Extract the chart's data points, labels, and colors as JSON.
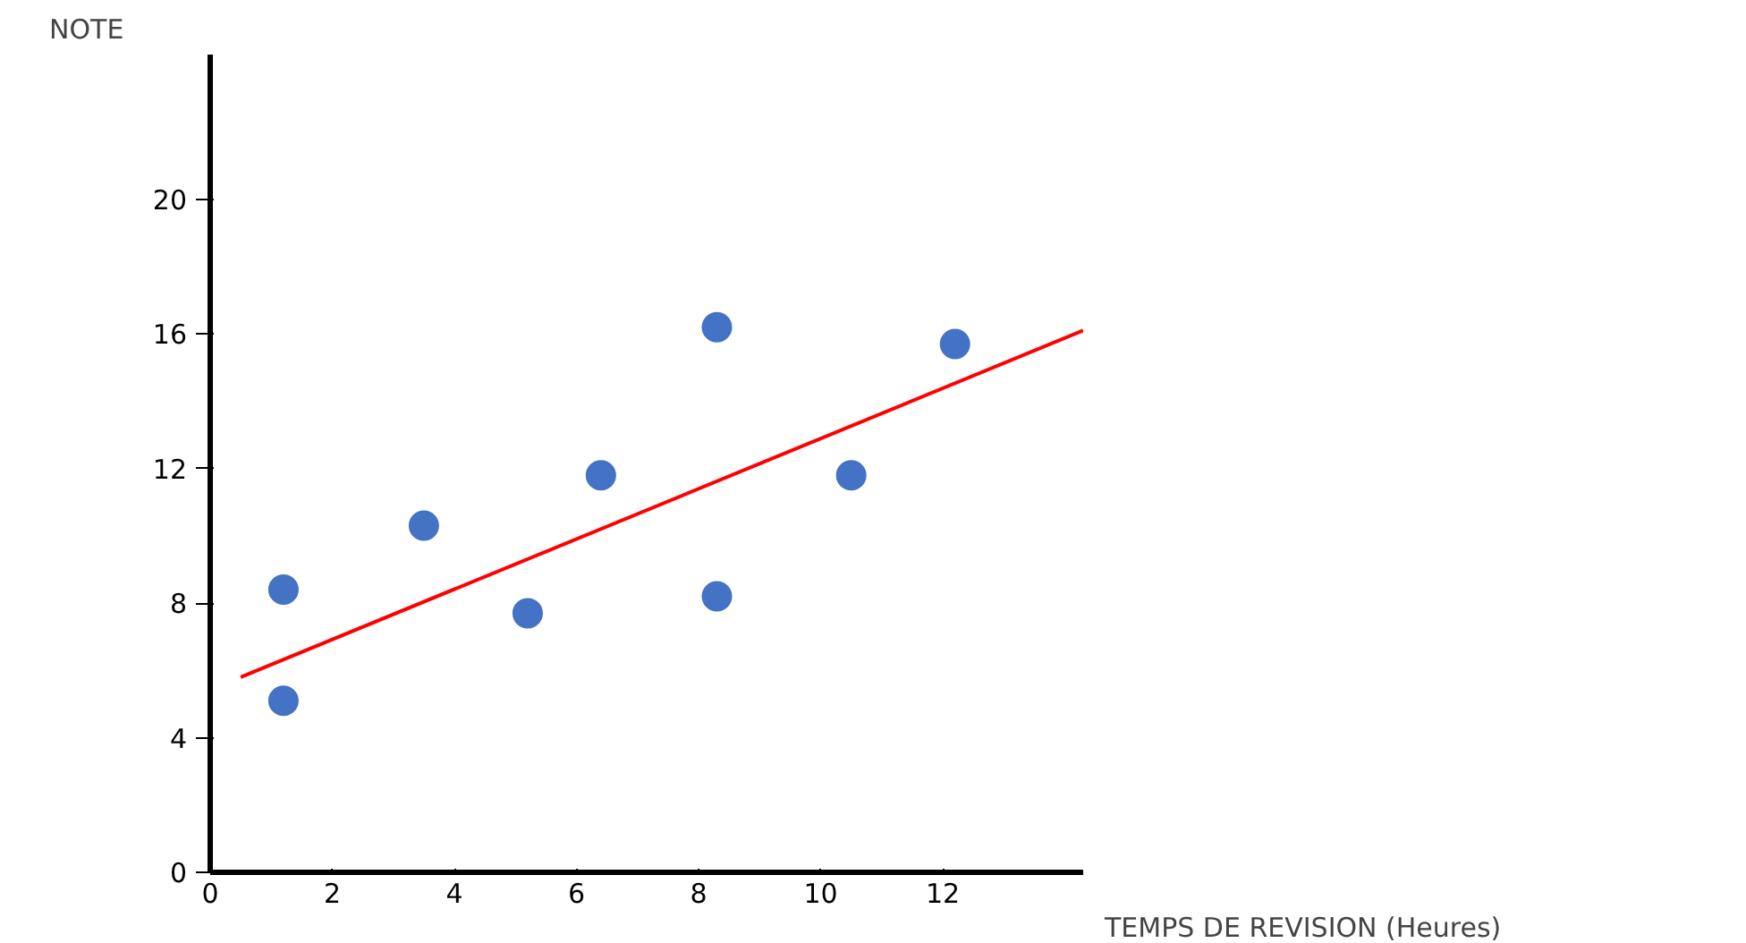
{
  "chart_data": {
    "type": "scatter",
    "xlabel": "TEMPS DE REVISION (Heures)",
    "ylabel": "NOTE",
    "xlim": [
      0,
      14.3
    ],
    "ylim": [
      0,
      24.3
    ],
    "xticks": [
      0,
      2,
      4,
      6,
      8,
      10,
      12
    ],
    "yticks": [
      0,
      4,
      8,
      12,
      16,
      20
    ],
    "grid": false,
    "series": [
      {
        "marker": "circle",
        "color": "#4472c4",
        "x": [
          1.2,
          1.2,
          3.5,
          5.2,
          6.4,
          8.3,
          8.3,
          10.5,
          12.2
        ],
        "values": [
          8.4,
          5.1,
          10.3,
          7.7,
          11.8,
          16.2,
          8.2,
          11.8,
          15.7
        ]
      },
      {
        "type": "line",
        "color": "#ff0000",
        "line_style": "solid",
        "x": [
          0.5,
          14.3
        ],
        "values": [
          5.8,
          16.1
        ]
      }
    ]
  }
}
